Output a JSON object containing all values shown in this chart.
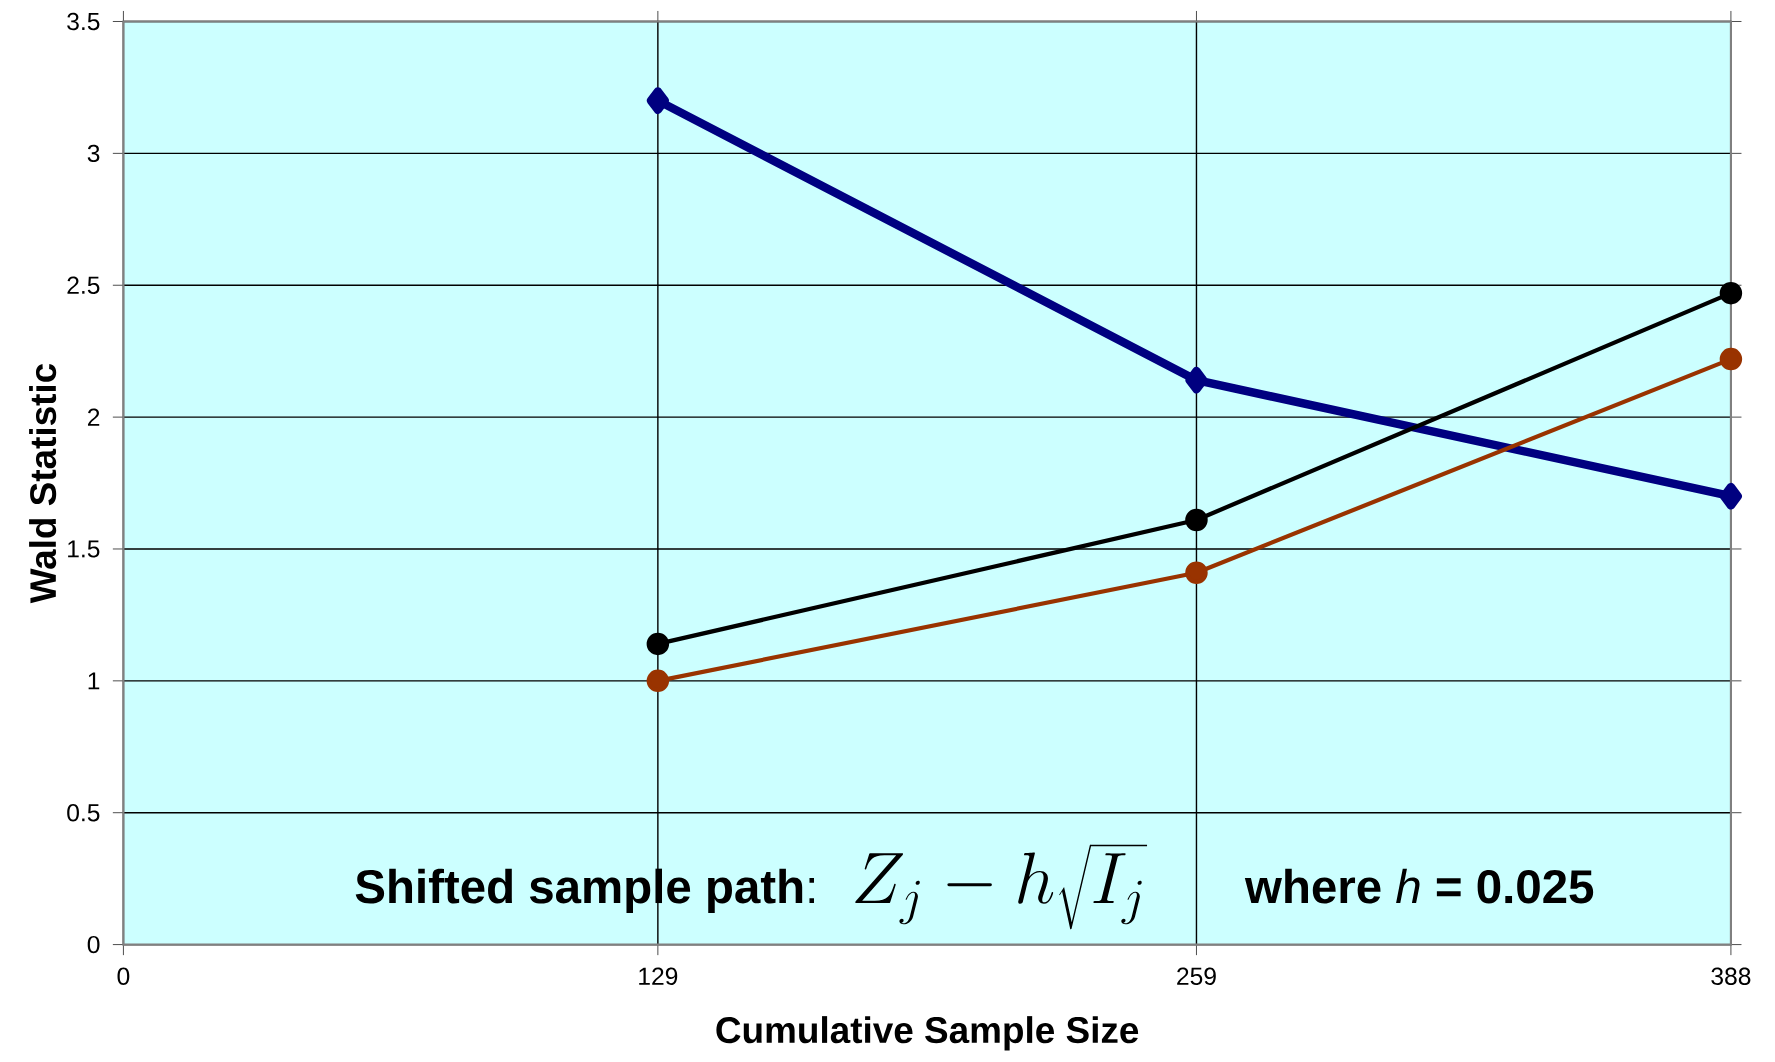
{
  "chart_data": {
    "type": "line",
    "xlabel": "Cumulative Sample Size",
    "ylabel": "Wald Statistic",
    "x": [
      129,
      259,
      388
    ],
    "series": [
      {
        "color": "#000080",
        "values": [
          3.2,
          2.14,
          1.7
        ],
        "marker": "diamond"
      },
      {
        "color": "#000000",
        "values": [
          1.14,
          1.61,
          2.47
        ],
        "marker": "circle"
      },
      {
        "color": "#993300",
        "values": [
          1.0,
          1.41,
          2.22
        ],
        "marker": "circle"
      }
    ],
    "xlim": [
      0,
      388
    ],
    "xticks": [
      0,
      129,
      259,
      388
    ],
    "ylim": [
      0,
      3.5
    ],
    "yticks": [
      0,
      0.5,
      1,
      1.5,
      2,
      2.5,
      3,
      3.5
    ],
    "grid": true,
    "line_style": "solid",
    "annotations": [
      "**Shifted sample path**:",
      "Z_j - h\\sqrt{I_j}",
      "**where** *h* **= 0.025**"
    ]
  }
}
